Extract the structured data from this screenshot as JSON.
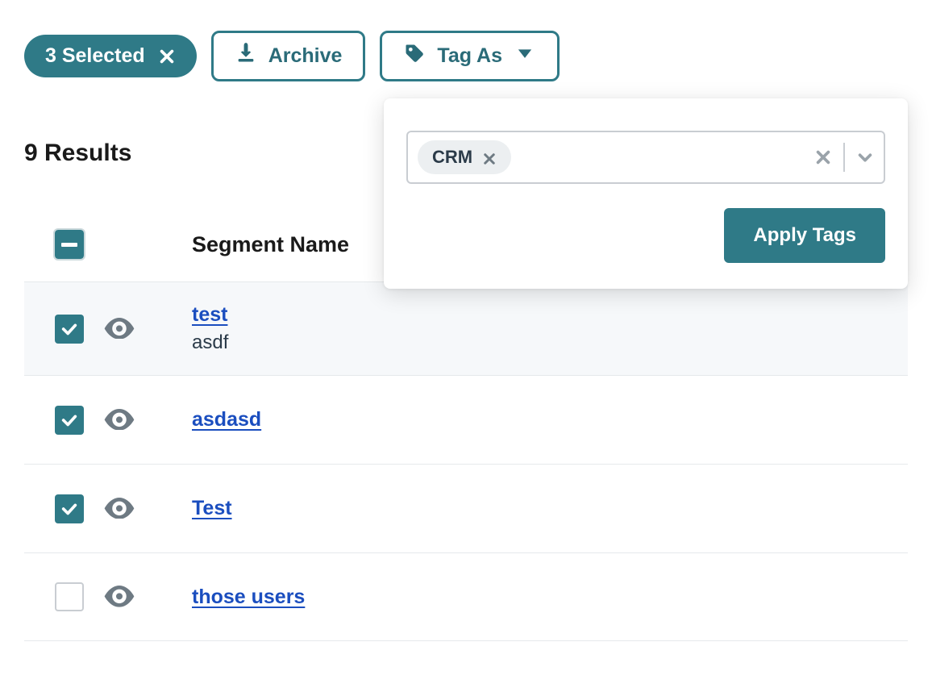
{
  "toolbar": {
    "selected_label": "3 Selected",
    "archive_label": "Archive",
    "tag_as_label": "Tag As"
  },
  "popover": {
    "chip_label": "CRM",
    "apply_label": "Apply Tags"
  },
  "results_label": "9 Results",
  "table": {
    "column_name": "Segment Name",
    "rows": [
      {
        "checked": true,
        "name": "test",
        "subtitle": "asdf"
      },
      {
        "checked": true,
        "name": "asdasd",
        "subtitle": ""
      },
      {
        "checked": true,
        "name": "Test",
        "subtitle": ""
      },
      {
        "checked": false,
        "name": "those users",
        "subtitle": ""
      }
    ]
  },
  "colors": {
    "accent": "#2f7a87",
    "link": "#1b4ebf",
    "border": "#e6e9ec",
    "chip_bg": "#eceff1",
    "muted": "#6e7a83"
  }
}
